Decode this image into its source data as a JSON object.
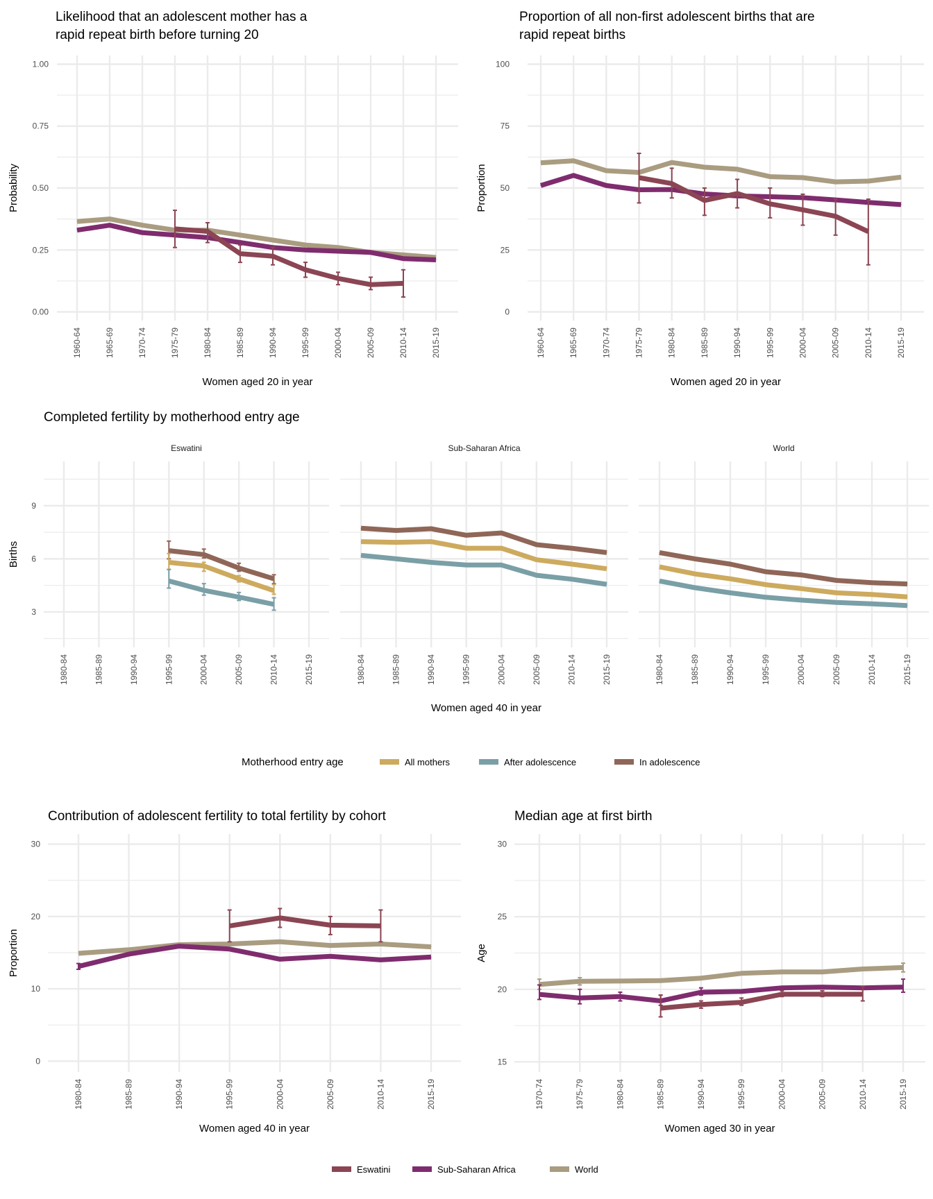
{
  "colors": {
    "Eswatini": "#8B4553",
    "Sub-Saharan Africa": "#7F2C6E",
    "World": "#A99C80",
    "All mothers": "#CDAA5E",
    "After adolescence": "#7A9FA6",
    "In adolescence": "#8F6657",
    "grid": "#EBEBEB"
  },
  "chart_data": [
    {
      "type": "line",
      "title": [
        "Likelihood that an adolescent mother has a",
        "rapid repeat birth before turning 20"
      ],
      "xlabel": "Women aged 20 in year",
      "ylabel": "Probability",
      "ylim": [
        -0.035,
        1.035
      ],
      "yticks": [
        0,
        0.25,
        0.5,
        0.75,
        1.0
      ],
      "ytick_labels": [
        "0.00",
        "0.25",
        "0.50",
        "0.75",
        "1.00"
      ],
      "grid": true,
      "categories": [
        "1960-64",
        "1965-69",
        "1970-74",
        "1975-79",
        "1980-84",
        "1985-89",
        "1990-94",
        "1995-99",
        "2000-04",
        "2005-09",
        "2010-14",
        "2015-19"
      ],
      "series": [
        {
          "name": "World",
          "values": [
            0.365,
            0.375,
            0.35,
            0.33,
            0.33,
            0.31,
            0.29,
            0.27,
            0.26,
            0.24,
            0.23,
            0.22
          ]
        },
        {
          "name": "Sub-Saharan Africa",
          "values": [
            0.33,
            0.35,
            0.32,
            0.31,
            0.3,
            0.28,
            0.26,
            0.25,
            0.245,
            0.24,
            0.215,
            0.21
          ]
        },
        {
          "name": "Eswatini",
          "values": [
            null,
            null,
            null,
            0.335,
            0.325,
            0.235,
            0.225,
            0.17,
            0.135,
            0.11,
            0.115,
            null
          ],
          "errors": [
            null,
            null,
            null,
            [
              0.26,
              0.41
            ],
            [
              0.28,
              0.36
            ],
            [
              0.2,
              0.27
            ],
            [
              0.19,
              0.26
            ],
            [
              0.14,
              0.2
            ],
            [
              0.11,
              0.16
            ],
            [
              0.09,
              0.14
            ],
            [
              0.06,
              0.17
            ],
            null
          ]
        }
      ]
    },
    {
      "type": "line",
      "title": [
        "Proportion of all non-first adolescent births that are",
        "rapid repeat births"
      ],
      "xlabel": "Women aged 20 in year",
      "ylabel": "Proportion",
      "ylim": [
        -3.5,
        103.5
      ],
      "yticks": [
        0,
        25,
        50,
        75,
        100
      ],
      "ytick_labels": [
        "0",
        "25",
        "50",
        "75",
        "100"
      ],
      "grid": true,
      "categories": [
        "1960-64",
        "1965-69",
        "1970-74",
        "1975-79",
        "1980-84",
        "1985-89",
        "1990-94",
        "1995-99",
        "2000-04",
        "2005-09",
        "2010-14",
        "2015-19"
      ],
      "series": [
        {
          "name": "World",
          "values": [
            60.2,
            61,
            57,
            56.3,
            60.3,
            58.4,
            57.6,
            54.6,
            54.2,
            52.5,
            52.8,
            54.4
          ]
        },
        {
          "name": "Sub-Saharan Africa",
          "values": [
            51,
            55.1,
            51,
            49.3,
            49.4,
            47.6,
            46.8,
            46.5,
            46.1,
            45.2,
            44.2,
            43.3
          ]
        },
        {
          "name": "Eswatini",
          "values": [
            null,
            null,
            null,
            54.2,
            51.8,
            45,
            47.8,
            43.6,
            41.2,
            38.6,
            32.4,
            null
          ],
          "errors": [
            null,
            null,
            null,
            [
              44,
              64
            ],
            [
              46,
              58
            ],
            [
              39,
              50
            ],
            [
              42,
              53.5
            ],
            [
              38,
              50
            ],
            [
              35,
              47.5
            ],
            [
              31,
              45.5
            ],
            [
              19,
              45.5
            ],
            null
          ]
        }
      ]
    },
    {
      "type": "line",
      "title": [
        "Completed fertility by motherhood entry age"
      ],
      "xlabel": "Women aged 40 in year",
      "ylabel": "Births",
      "ylim": [
        1.0,
        11.5
      ],
      "yticks": [
        3,
        6,
        9
      ],
      "ytick_labels": [
        "3",
        "6",
        "9"
      ],
      "grid": true,
      "legend": {
        "title": "Motherhood entry age",
        "position": "bottom",
        "entries": [
          "All mothers",
          "After adolescence",
          "In adolescence"
        ]
      },
      "categories": [
        "1980-84",
        "1985-89",
        "1990-94",
        "1995-99",
        "2000-04",
        "2005-09",
        "2010-14",
        "2015-19"
      ],
      "facets": [
        {
          "name": "Eswatini",
          "series": [
            {
              "name": "In adolescence",
              "values": [
                null,
                null,
                null,
                6.46,
                6.24,
                5.48,
                4.87,
                null
              ],
              "errors": [
                null,
                null,
                null,
                [
                  6.0,
                  7.0
                ],
                [
                  6.05,
                  6.55
                ],
                [
                  5.3,
                  5.75
                ],
                [
                  4.6,
                  5.1
                ],
                null
              ]
            },
            {
              "name": "All mothers",
              "values": [
                null,
                null,
                null,
                5.8,
                5.6,
                4.87,
                4.2,
                null
              ],
              "errors": [
                null,
                null,
                null,
                [
                  5.4,
                  6.3
                ],
                [
                  5.3,
                  5.8
                ],
                [
                  4.7,
                  5.05
                ],
                [
                  4.0,
                  4.55
                ],
                null
              ]
            },
            {
              "name": "After adolescence",
              "values": [
                null,
                null,
                null,
                4.75,
                4.22,
                3.84,
                3.43,
                null
              ],
              "errors": [
                null,
                null,
                null,
                [
                  4.35,
                  5.4
                ],
                [
                  3.95,
                  4.6
                ],
                [
                  3.65,
                  4.1
                ],
                [
                  3.1,
                  3.8
                ],
                null
              ]
            }
          ]
        },
        {
          "name": "Sub-Saharan Africa",
          "series": [
            {
              "name": "In adolescence",
              "values": [
                7.73,
                7.6,
                7.7,
                7.33,
                7.46,
                6.8,
                6.6,
                6.35
              ]
            },
            {
              "name": "All mothers",
              "values": [
                6.97,
                6.93,
                6.97,
                6.6,
                6.6,
                5.95,
                5.7,
                5.44
              ]
            },
            {
              "name": "After adolescence",
              "values": [
                6.2,
                6.0,
                5.8,
                5.65,
                5.65,
                5.07,
                4.85,
                4.56
              ]
            }
          ]
        },
        {
          "name": "World",
          "series": [
            {
              "name": "In adolescence",
              "values": [
                6.35,
                6.0,
                5.7,
                5.27,
                5.09,
                4.78,
                4.65,
                4.58
              ]
            },
            {
              "name": "All mothers",
              "values": [
                5.55,
                5.15,
                4.87,
                4.54,
                4.32,
                4.08,
                3.99,
                3.85
              ]
            },
            {
              "name": "After adolescence",
              "values": [
                4.75,
                4.37,
                4.08,
                3.83,
                3.67,
                3.54,
                3.46,
                3.36
              ]
            }
          ]
        }
      ]
    },
    {
      "type": "line",
      "title": [
        "Contribution of adolescent fertility to total fertility by cohort"
      ],
      "xlabel": "Women aged 40 in year",
      "ylabel": "Proportion",
      "ylim": [
        -1.5,
        31.4
      ],
      "yticks": [
        0,
        10,
        20,
        30
      ],
      "ytick_labels": [
        "0",
        "10",
        "20",
        "30"
      ],
      "grid": true,
      "categories": [
        "1980-84",
        "1985-89",
        "1990-94",
        "1995-99",
        "2000-04",
        "2005-09",
        "2010-14",
        "2015-19"
      ],
      "series": [
        {
          "name": "World",
          "values": [
            14.9,
            15.4,
            16.1,
            16.2,
            16.5,
            16.0,
            16.2,
            15.8
          ]
        },
        {
          "name": "Sub-Saharan Africa",
          "values": [
            13.1,
            14.8,
            15.9,
            15.5,
            14.1,
            14.5,
            14.0,
            14.4
          ],
          "errors": [
            [
              12.7,
              13.5
            ],
            null,
            null,
            null,
            null,
            null,
            null,
            null
          ]
        },
        {
          "name": "Eswatini",
          "values": [
            null,
            null,
            null,
            18.7,
            19.8,
            18.8,
            18.7,
            null
          ],
          "errors": [
            null,
            null,
            null,
            [
              16.5,
              20.9
            ],
            [
              18.5,
              21.1
            ],
            [
              17.5,
              20.0
            ],
            [
              16.5,
              20.9
            ],
            null
          ]
        }
      ]
    },
    {
      "type": "line",
      "title": [
        "Median age at first birth"
      ],
      "xlabel": "Women aged 30 in year",
      "ylabel": "Age",
      "ylim": [
        14.3,
        30.7
      ],
      "yticks": [
        15,
        20,
        25,
        30
      ],
      "ytick_labels": [
        "15",
        "20",
        "25",
        "30"
      ],
      "grid": true,
      "categories": [
        "1970-74",
        "1975-79",
        "1980-84",
        "1985-89",
        "1990-94",
        "1995-99",
        "2000-04",
        "2005-09",
        "2010-14",
        "2015-19"
      ],
      "series": [
        {
          "name": "World",
          "values": [
            20.34,
            20.55,
            20.57,
            20.6,
            20.77,
            21.1,
            21.2,
            21.2,
            21.4,
            21.5
          ],
          "errors": [
            [
              20.0,
              20.7
            ],
            [
              20.3,
              20.8
            ],
            null,
            null,
            null,
            null,
            null,
            null,
            null,
            [
              21.2,
              21.8
            ]
          ]
        },
        {
          "name": "Sub-Saharan Africa",
          "values": [
            19.65,
            19.4,
            19.5,
            19.2,
            19.8,
            19.85,
            20.1,
            20.15,
            20.1,
            20.15
          ],
          "errors": [
            [
              19.3,
              20.3
            ],
            [
              19.0,
              20.0
            ],
            [
              19.2,
              19.8
            ],
            [
              18.9,
              19.6
            ],
            [
              19.6,
              20.1
            ],
            null,
            null,
            null,
            null,
            [
              19.8,
              20.7
            ]
          ]
        },
        {
          "name": "Eswatini",
          "values": [
            null,
            null,
            null,
            18.7,
            18.95,
            19.1,
            19.66,
            19.66,
            19.66,
            null
          ],
          "errors": [
            null,
            null,
            null,
            [
              18.1,
              19.6
            ],
            [
              18.7,
              19.2
            ],
            [
              18.9,
              19.4
            ],
            [
              19.5,
              19.9
            ],
            [
              19.5,
              19.9
            ],
            [
              19.2,
              20.2
            ],
            null
          ]
        }
      ]
    }
  ],
  "legend": {
    "position": "bottom",
    "entries": [
      "Eswatini",
      "Sub-Saharan Africa",
      "World"
    ]
  }
}
